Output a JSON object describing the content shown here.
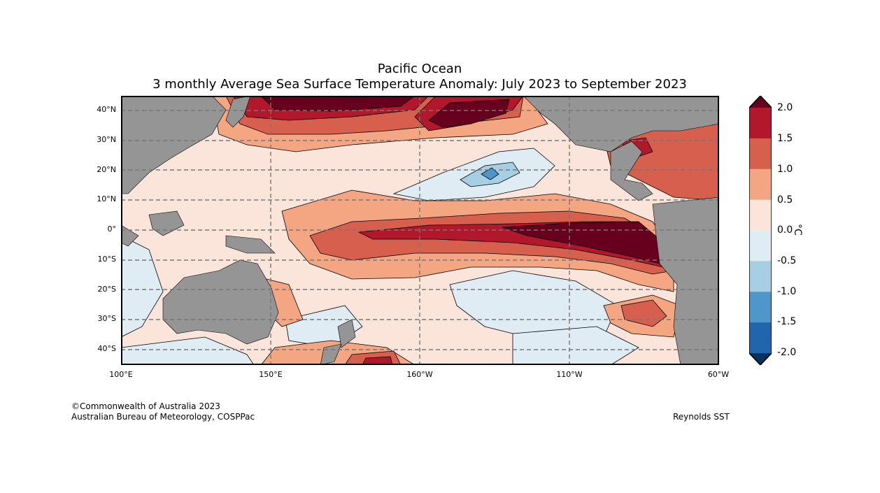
{
  "title": {
    "line1": "Pacific Ocean",
    "line2": "3 monthly Average Sea Surface Temperature Anomaly: July 2023 to September 2023"
  },
  "map": {
    "lat_labels": [
      "40°N",
      "30°N",
      "20°N",
      "10°N",
      "0°",
      "10°S",
      "20°S",
      "30°S",
      "40°S"
    ],
    "lon_labels": [
      "100°E",
      "150°E",
      "160°W",
      "110°W",
      "60°W"
    ],
    "land_color": "#959595",
    "grid_color": "#777777"
  },
  "colorbar": {
    "unit": "°C",
    "tick_labels": [
      "2.0",
      "1.5",
      "1.0",
      "0.5",
      "0.0",
      "-0.5",
      "-1.0",
      "-1.5",
      "-2.0"
    ],
    "colors": [
      "#67001f",
      "#b2182b",
      "#d6604d",
      "#f4a582",
      "#fbe5db",
      "#e0ecf3",
      "#a6cfe3",
      "#4f97c9",
      "#2166ac",
      "#0b2f5e"
    ]
  },
  "footer": {
    "copyright": "©Commonwealth of Australia 2023",
    "agency": "Australian Bureau of Meteorology, COSPPac",
    "source": "Reynolds SST"
  }
}
